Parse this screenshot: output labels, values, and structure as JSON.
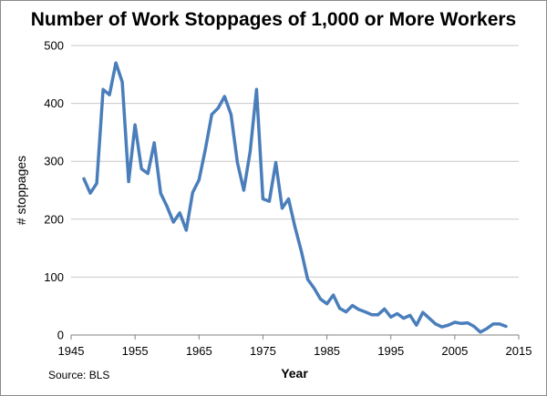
{
  "chart_data": {
    "type": "line",
    "title": "Number of Work Stoppages of 1,000 or More Workers",
    "xlabel": "Year",
    "ylabel": "# stoppages",
    "source": "Source: BLS",
    "xlim": [
      1945,
      2015
    ],
    "ylim": [
      0,
      500
    ],
    "xticks": [
      1945,
      1955,
      1965,
      1975,
      1985,
      1995,
      2005,
      2015
    ],
    "yticks": [
      0,
      100,
      200,
      300,
      400,
      500
    ],
    "grid": true,
    "legend": "none",
    "line_color": "#4a7ebb",
    "series": [
      {
        "x": [
          1947,
          1948,
          1949,
          1950,
          1951,
          1952,
          1953,
          1954,
          1955,
          1956,
          1957,
          1958,
          1959,
          1960,
          1961,
          1962,
          1963,
          1964,
          1965,
          1966,
          1967,
          1968,
          1969,
          1970,
          1971,
          1972,
          1973,
          1974,
          1975,
          1976,
          1977,
          1978,
          1979,
          1980,
          1981,
          1982,
          1983,
          1984,
          1985,
          1986,
          1987,
          1988,
          1989,
          1990,
          1991,
          1992,
          1993,
          1994,
          1995,
          1996,
          1997,
          1998,
          1999,
          2000,
          2001,
          2002,
          2003,
          2004,
          2005,
          2006,
          2007,
          2008,
          2009,
          2010,
          2011,
          2012,
          2013
        ],
        "values": [
          270,
          245,
          262,
          424,
          415,
          470,
          437,
          265,
          363,
          287,
          279,
          332,
          245,
          222,
          195,
          211,
          181,
          246,
          268,
          321,
          381,
          392,
          412,
          381,
          298,
          250,
          317,
          424,
          235,
          231,
          298,
          219,
          235,
          187,
          145,
          96,
          81,
          62,
          54,
          69,
          46,
          40,
          51,
          44,
          40,
          35,
          35,
          45,
          31,
          37,
          29,
          34,
          17,
          39,
          29,
          19,
          14,
          17,
          22,
          20,
          21,
          15,
          5,
          11,
          19,
          19,
          15
        ]
      }
    ]
  }
}
